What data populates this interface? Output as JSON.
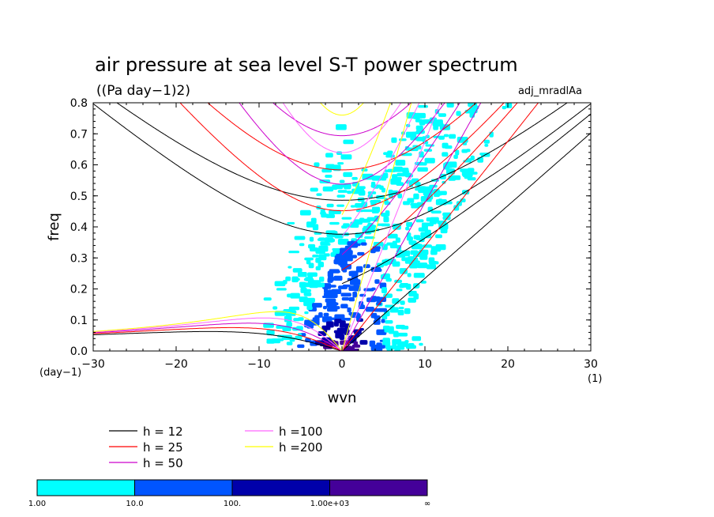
{
  "chart_data": {
    "type": "contour",
    "title": "air pressure at sea level S-T power spectrum",
    "subtitle": "((Pa day−1)2)",
    "dataset_label": "adj_mradlAa",
    "xlabel": "wvn",
    "ylabel": "freq",
    "x_unit": "(1)",
    "y_unit": "(day−1)",
    "xlim": [
      -30,
      30
    ],
    "ylim": [
      0,
      0.8
    ],
    "x_ticks": [
      -30,
      -20,
      -10,
      0,
      10,
      20,
      30
    ],
    "y_ticks": [
      0.0,
      0.1,
      0.2,
      0.3,
      0.4,
      0.5,
      0.6,
      0.7,
      0.8
    ],
    "x_tick_labels": [
      "−30",
      "−20",
      "−10",
      "0",
      "10",
      "20",
      "30"
    ],
    "y_tick_labels": [
      "0.0",
      "0.1",
      "0.2",
      "0.3",
      "0.4",
      "0.5",
      "0.6",
      "0.7",
      "0.8"
    ],
    "dispersion_curves": [
      {
        "name": "h = 12",
        "h": 12,
        "color": "#000000"
      },
      {
        "name": "h = 25",
        "h": 25,
        "color": "#ff0000"
      },
      {
        "name": "h = 50",
        "h": 50,
        "color": "#cc00cc"
      },
      {
        "name": "h =100",
        "h": 100,
        "color": "#ff66ff"
      },
      {
        "name": "h =200",
        "h": 200,
        "color": "#ffff00"
      }
    ],
    "shading_levels": [
      {
        "from": "1.00",
        "to": "10.0",
        "color": "#00ffff"
      },
      {
        "from": "10.0",
        "to": "100.",
        "color": "#0055ff"
      },
      {
        "from": "100.",
        "to": "1.00e+03",
        "color": "#0000aa"
      },
      {
        "from": "1.00e+03",
        "to": "∞",
        "color": "#440099"
      }
    ],
    "colorbar_labels": [
      "1.00",
      "10.0",
      "100.",
      "1.00e+03",
      "∞"
    ],
    "grid": false
  }
}
